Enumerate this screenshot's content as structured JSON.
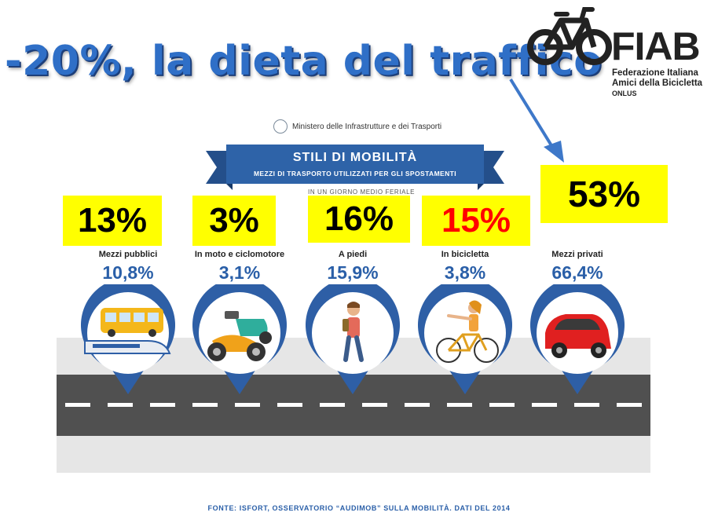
{
  "headline": "-20%, la dieta del traffico",
  "logo": {
    "name": "FIAB",
    "line1": "Federazione Italiana",
    "line2": "Amici della Bicicletta",
    "line3": "ONLUS",
    "icon": "bicycle-icon"
  },
  "ministry": "Ministero delle Infrastrutture e dei Trasporti",
  "banner": {
    "title": "STILI DI MOBILITÀ",
    "subtitle": "MEZZI DI TRASPORTO UTILIZZATI PER GLI SPOSTAMENTI",
    "note": "IN UN GIORNO MEDIO FERIALE"
  },
  "targets": [
    "13%",
    "3%",
    "16%",
    "15%",
    "53%"
  ],
  "categories": [
    {
      "label": "Mezzi pubblici",
      "value": "10,8%",
      "icon": "bus-train-icon"
    },
    {
      "label": "In moto e ciclomotore",
      "value": "3,1%",
      "icon": "motorcycle-scooter-icon"
    },
    {
      "label": "A piedi",
      "value": "15,9%",
      "icon": "pedestrian-icon"
    },
    {
      "label": "In bicicletta",
      "value": "3,8%",
      "icon": "cyclist-icon"
    },
    {
      "label": "Mezzi privati",
      "value": "66,4%",
      "icon": "car-icon"
    }
  ],
  "footer": "FONTE: ISFORT, OSSERVATORIO “AUDIMOB” SULLA MOBILITÀ. DATI DEL 2014",
  "colors": {
    "headline": "#2f6fc7",
    "banner": "#2e63a8",
    "highlight": "#ffff00",
    "bike_target": "#ff0000",
    "value": "#2a5fa8"
  }
}
